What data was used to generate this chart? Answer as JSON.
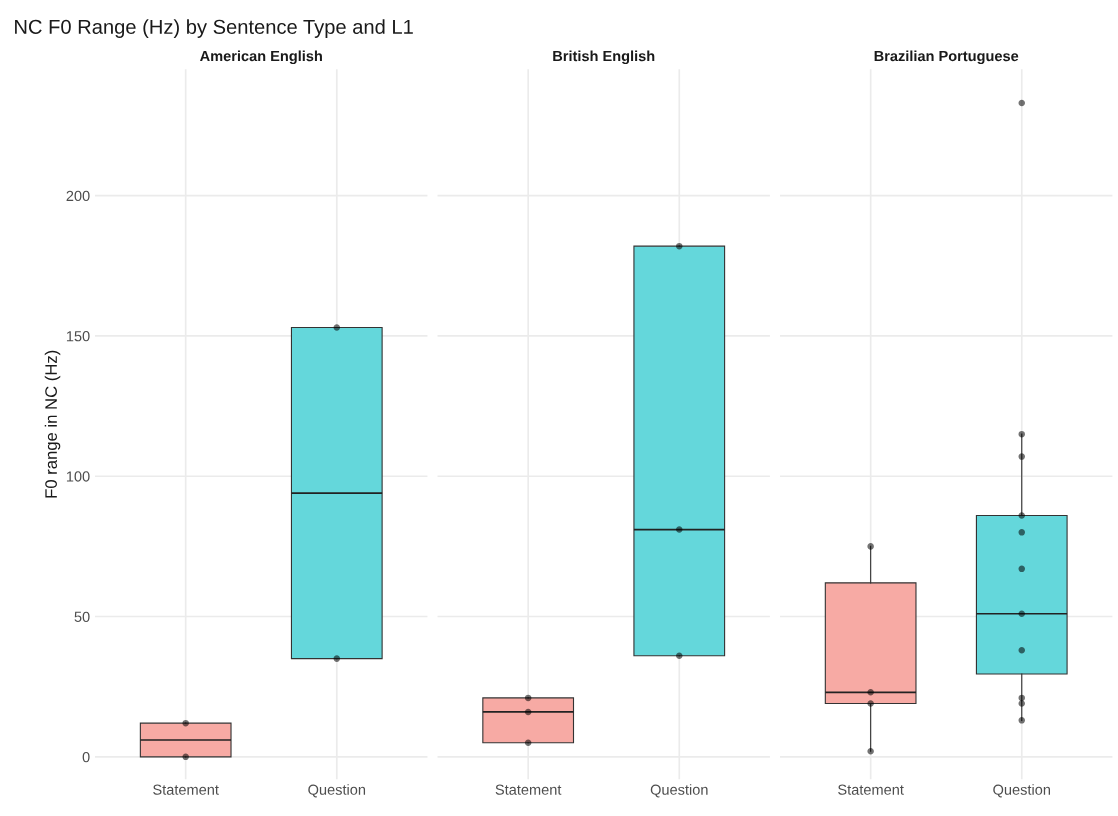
{
  "chart_data": [
    {
      "type": "box",
      "title": "NC F0 Range (Hz) by Sentence Type and L1",
      "subtitle": "American English",
      "ylabel": "F0 range in NC (Hz)",
      "categories": [
        "Statement",
        "Question"
      ],
      "colors": [
        "#f7aaa4",
        "#64d7db"
      ],
      "boxes": [
        {
          "low": 0,
          "q1": 0,
          "median": 6,
          "q3": 12,
          "high": 12
        },
        {
          "low": 35,
          "q1": 35,
          "median": 94,
          "q3": 153,
          "high": 153
        }
      ],
      "series": [
        {
          "type": "scatter",
          "color": "#000000",
          "x": [
            "Statement",
            "Statement",
            "Question",
            "Question"
          ],
          "values": [
            0,
            12,
            35,
            153
          ]
        }
      ],
      "ylim": [
        -8,
        245
      ],
      "yticks": [
        0,
        50,
        100,
        150,
        200
      ],
      "grid": true
    },
    {
      "type": "box",
      "subtitle": "British English",
      "categories": [
        "Statement",
        "Question"
      ],
      "colors": [
        "#f7aaa4",
        "#64d7db"
      ],
      "boxes": [
        {
          "low": 5,
          "q1": 5,
          "median": 16,
          "q3": 21,
          "high": 21
        },
        {
          "low": 36,
          "q1": 36,
          "median": 81,
          "q3": 182,
          "high": 182
        }
      ],
      "series": [
        {
          "type": "scatter",
          "color": "#000000",
          "x": [
            "Statement",
            "Statement",
            "Statement",
            "Question",
            "Question",
            "Question"
          ],
          "values": [
            5,
            16,
            21,
            36,
            81,
            182
          ]
        }
      ],
      "ylim": [
        -8,
        245
      ],
      "yticks": [
        0,
        50,
        100,
        150,
        200
      ],
      "grid": true,
      "tick_labels": "x"
    },
    {
      "type": "box",
      "subtitle": "Brazilian Portuguese",
      "categories": [
        "Statement",
        "Question"
      ],
      "colors": [
        "#f7aaa4",
        "#64d7db"
      ],
      "boxes": [
        {
          "low": 2,
          "q1": 19,
          "median": 23,
          "q3": 62,
          "high": 75
        },
        {
          "low": 13,
          "q1": 29.5,
          "median": 51,
          "q3": 86,
          "high": 115
        }
      ],
      "series": [
        {
          "type": "scatter",
          "color": "#000000",
          "x": [
            "Statement",
            "Statement",
            "Statement",
            "Statement",
            "Question",
            "Question",
            "Question",
            "Question",
            "Question",
            "Question",
            "Question",
            "Question",
            "Question",
            "Question",
            "Question"
          ],
          "values": [
            2,
            19,
            23,
            75,
            13,
            19,
            21,
            38,
            51,
            67,
            80,
            86,
            107,
            115,
            233
          ]
        }
      ],
      "ylim": [
        -8,
        245
      ],
      "yticks": [
        0,
        50,
        100,
        150,
        200
      ],
      "grid": true,
      "tick_labels": "x"
    }
  ]
}
